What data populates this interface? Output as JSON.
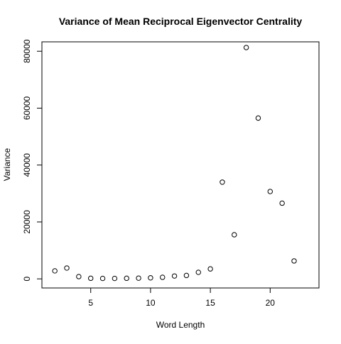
{
  "chart_data": {
    "type": "scatter",
    "title": "Variance of Mean Reciprocal Eigenvector Centrality",
    "xlabel": "Word Length",
    "ylabel": "Variance",
    "xlim": [
      0.92,
      24.08
    ],
    "ylim": [
      -3200,
      83300
    ],
    "x_ticks": [
      5,
      10,
      15,
      20
    ],
    "y_ticks": [
      0,
      20000,
      40000,
      60000,
      80000
    ],
    "grid": false,
    "marker": "open-circle",
    "colors": {
      "marker": "#000000",
      "axis": "#000000",
      "background": "#ffffff"
    },
    "points": [
      {
        "x": 2,
        "y": 2800
      },
      {
        "x": 3,
        "y": 3800
      },
      {
        "x": 4,
        "y": 800
      },
      {
        "x": 5,
        "y": 200
      },
      {
        "x": 6,
        "y": 150
      },
      {
        "x": 7,
        "y": 150
      },
      {
        "x": 8,
        "y": 200
      },
      {
        "x": 9,
        "y": 250
      },
      {
        "x": 10,
        "y": 350
      },
      {
        "x": 11,
        "y": 550
      },
      {
        "x": 12,
        "y": 1000
      },
      {
        "x": 13,
        "y": 1200
      },
      {
        "x": 14,
        "y": 2300
      },
      {
        "x": 15,
        "y": 3500
      },
      {
        "x": 16,
        "y": 34000
      },
      {
        "x": 17,
        "y": 15500
      },
      {
        "x": 18,
        "y": 81300
      },
      {
        "x": 19,
        "y": 56500
      },
      {
        "x": 20,
        "y": 30700
      },
      {
        "x": 21,
        "y": 26600
      },
      {
        "x": 22,
        "y": 6300
      }
    ]
  }
}
